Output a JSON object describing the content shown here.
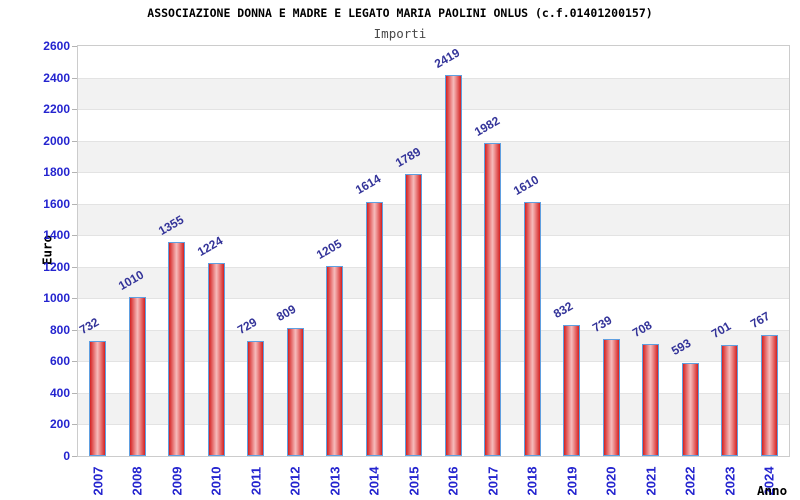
{
  "header": {
    "title": "ASSOCIAZIONE DONNA E MADRE E LEGATO MARIA PAOLINI ONLUS (c.f.01401200157)",
    "subtitle": "Importi"
  },
  "chart_data": {
    "type": "bar",
    "title": "ASSOCIAZIONE DONNA E MADRE E LEGATO MARIA PAOLINI ONLUS (c.f.01401200157)",
    "subtitle": "Importi",
    "categories": [
      "2007",
      "2008",
      "2009",
      "2010",
      "2011",
      "2012",
      "2013",
      "2014",
      "2015",
      "2016",
      "2017",
      "2018",
      "2019",
      "2020",
      "2021",
      "2022",
      "2023",
      "2024"
    ],
    "values": [
      732,
      1010,
      1355,
      1224,
      729,
      809,
      1205,
      1614,
      1789,
      2419,
      1982,
      1610,
      832,
      739,
      708,
      593,
      701,
      767
    ],
    "xlabel": "Anno",
    "ylabel": "Euro",
    "ylim": [
      0,
      2600
    ],
    "ytick_step": 200,
    "yticks": [
      0,
      200,
      400,
      600,
      800,
      1000,
      1200,
      1400,
      1600,
      1800,
      2000,
      2200,
      2400,
      2600
    ],
    "grid": "alternating horizontal bands every 200, light gray on white",
    "legend": "none",
    "bar_value_labels": "shown above each bar, rotated"
  },
  "colors": {
    "tick_label": "#2424cf",
    "value_label": "#333399",
    "bar_border": "#5f9fe0",
    "bar_edge": "#d42121",
    "bar_mid": "#ef9898",
    "bar_center": "#f6bcbc",
    "band_gray": "#f2f2f2",
    "grid_line": "#e3e3e3",
    "plot_border": "#cccccc"
  }
}
